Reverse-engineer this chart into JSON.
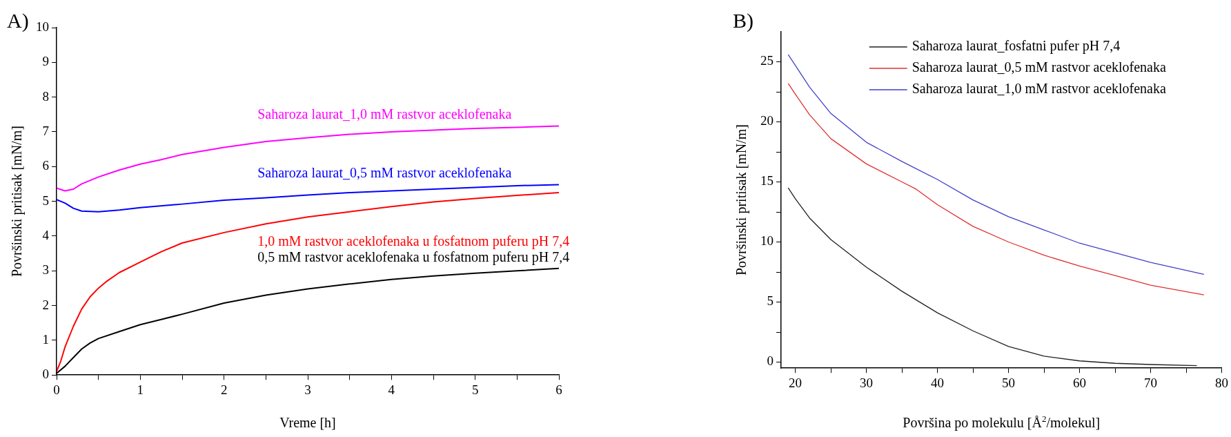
{
  "chart_data": [
    {
      "type": "line",
      "title": "A)",
      "xlabel": "Vreme [h]",
      "ylabel": "Površinski pritisak [mN/m]",
      "xlim": [
        0,
        6
      ],
      "ylim": [
        0,
        10
      ],
      "xticks": [
        0,
        {
          "value": 0.5,
          "label": null
        },
        1,
        {
          "value": 1.5,
          "label": null
        },
        2,
        {
          "value": 2.5,
          "label": null
        },
        3,
        {
          "value": 3.5,
          "label": null
        },
        4,
        {
          "value": 4.5,
          "label": null
        },
        5,
        {
          "value": 5.5,
          "label": null
        },
        6
      ],
      "yticks": [
        0,
        1,
        2,
        3,
        4,
        5,
        6,
        7,
        8,
        9,
        10
      ],
      "grid": false,
      "legend": false,
      "marker": "none",
      "line_style": "solid",
      "series": [
        {
          "name": "Saharoza laurat_1,0 mM rastvor aceklofenaka",
          "color": "#ff00ff",
          "x": [
            0,
            0.1,
            0.2,
            0.3,
            0.5,
            0.75,
            1,
            1.25,
            1.5,
            2,
            2.5,
            3,
            3.5,
            4,
            4.5,
            5,
            5.5,
            6
          ],
          "values": [
            5.38,
            5.3,
            5.35,
            5.5,
            5.7,
            5.9,
            6.07,
            6.2,
            6.35,
            6.55,
            6.72,
            6.83,
            6.93,
            7.0,
            7.05,
            7.1,
            7.13,
            7.17
          ]
        },
        {
          "name": "Saharoza laurat_0,5 mM rastvor aceklofenaka",
          "color": "#0000ff",
          "x": [
            0,
            0.1,
            0.2,
            0.3,
            0.5,
            0.75,
            1,
            1.5,
            2,
            2.5,
            3,
            3.5,
            4,
            4.5,
            5,
            5.5,
            6
          ],
          "values": [
            5.05,
            4.95,
            4.8,
            4.72,
            4.7,
            4.75,
            4.82,
            4.92,
            5.03,
            5.1,
            5.18,
            5.25,
            5.3,
            5.35,
            5.4,
            5.45,
            5.48
          ]
        },
        {
          "name": "1,0 mM rastvor aceklofenaka u fosfatnom puferu pH 7,4",
          "color": "#ff0000",
          "x": [
            0,
            0.05,
            0.1,
            0.2,
            0.3,
            0.4,
            0.5,
            0.6,
            0.75,
            1,
            1.25,
            1.5,
            2,
            2.5,
            3,
            3.5,
            4,
            4.5,
            5,
            5.5,
            6
          ],
          "values": [
            0.1,
            0.4,
            0.8,
            1.4,
            1.9,
            2.25,
            2.5,
            2.7,
            2.95,
            3.25,
            3.55,
            3.8,
            4.1,
            4.35,
            4.55,
            4.7,
            4.85,
            4.98,
            5.08,
            5.17,
            5.25
          ]
        },
        {
          "name": "0,5 mM rastvor aceklofenaka u fosfatnom puferu pH 7,4",
          "color": "#000000",
          "x": [
            0,
            0.1,
            0.2,
            0.3,
            0.4,
            0.5,
            0.75,
            1,
            1.25,
            1.5,
            2,
            2.5,
            3,
            3.5,
            4,
            4.5,
            5,
            5.5,
            6
          ],
          "values": [
            0.05,
            0.25,
            0.5,
            0.75,
            0.92,
            1.05,
            1.25,
            1.45,
            1.6,
            1.75,
            2.07,
            2.3,
            2.48,
            2.62,
            2.75,
            2.85,
            2.93,
            3.0,
            3.07
          ]
        }
      ]
    },
    {
      "type": "line",
      "title": "B)",
      "xlabel": "Površina po molekulu [Å$^{2}$/molekul]",
      "ylabel": "Površinski pritisak [mN/m]",
      "xlim": [
        18,
        80
      ],
      "ylim": [
        -0.5,
        27.5
      ],
      "xticks": [
        20,
        {
          "value": 25,
          "label": null
        },
        30,
        {
          "value": 35,
          "label": null
        },
        40,
        {
          "value": 45,
          "label": null
        },
        50,
        {
          "value": 55,
          "label": null
        },
        60,
        {
          "value": 65,
          "label": null
        },
        70,
        {
          "value": 75,
          "label": null
        },
        80
      ],
      "yticks": [
        0,
        {
          "value": 2.5,
          "label": null
        },
        5,
        {
          "value": 7.5,
          "label": null
        },
        10,
        {
          "value": 12.5,
          "label": null
        },
        15,
        {
          "value": 17.5,
          "label": null
        },
        20,
        {
          "value": 22.5,
          "label": null
        },
        25
      ],
      "grid": false,
      "legend": "top",
      "marker": "none",
      "line_style": "solid",
      "series": [
        {
          "name": "Saharoza laurat_fosfatni pufer pH 7,4",
          "color": "#202020",
          "x": [
            19,
            20,
            22,
            25,
            30,
            35,
            40,
            45,
            50,
            55,
            60,
            65,
            70,
            76.5
          ],
          "values": [
            14.5,
            13.6,
            12.0,
            10.2,
            7.9,
            5.9,
            4.1,
            2.6,
            1.3,
            0.5,
            0.1,
            -0.1,
            -0.2,
            -0.3
          ]
        },
        {
          "name": "Saharoza laurat_0,5 mM rastvor aceklofenaka",
          "color": "#e03030",
          "x": [
            19,
            20,
            22,
            25,
            30,
            35,
            37,
            40,
            45,
            50,
            55,
            60,
            65,
            70,
            77.5
          ],
          "values": [
            23.2,
            22.3,
            20.6,
            18.6,
            16.5,
            15.0,
            14.4,
            13.1,
            11.3,
            10.0,
            8.9,
            8.0,
            7.2,
            6.4,
            5.6
          ]
        },
        {
          "name": "Saharoza laurat_1,0 mM rastvor aceklofenaka",
          "color": "#4040c8",
          "x": [
            19,
            20,
            22,
            25,
            30,
            35,
            40,
            45,
            50,
            55,
            60,
            65,
            70,
            77.5
          ],
          "values": [
            25.6,
            24.7,
            22.9,
            20.7,
            18.3,
            16.7,
            15.2,
            13.5,
            12.1,
            11.0,
            9.9,
            9.1,
            8.3,
            7.3
          ]
        }
      ]
    }
  ]
}
